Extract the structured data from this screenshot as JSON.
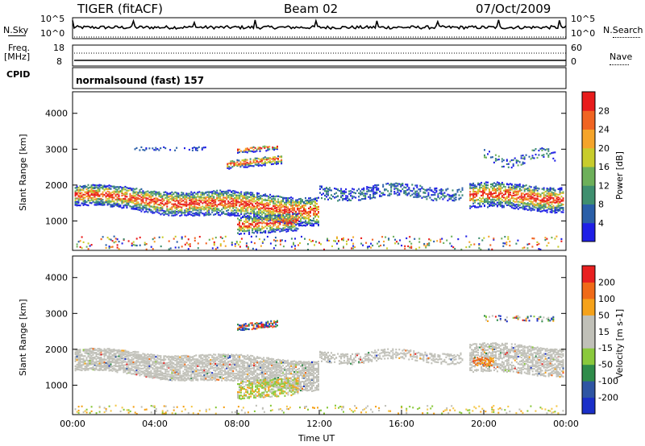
{
  "header": {
    "left_title": "TIGER (fitACF)",
    "center_title": "Beam 02",
    "right_title": "07/Oct/2009"
  },
  "labels": {
    "nsky": "N.Sky",
    "nsearch": "N.Search",
    "freq_line1": "Freq.",
    "freq_line2": "[MHz]",
    "nave": "Nave",
    "cpid": "CPID",
    "cpid_value": "normalsound (fast) 157"
  },
  "noise_axis": {
    "left_ticks": [
      "10^5",
      "10^0"
    ],
    "right_ticks": [
      "10^5",
      "10^0"
    ]
  },
  "freq_axis": {
    "left_ticks": [
      "18",
      "8"
    ],
    "right_ticks": [
      "60",
      "0"
    ]
  },
  "chart_data": [
    {
      "type": "heatmap",
      "name": "power",
      "ylabel": "Slant Range [km]",
      "xlabel": "",
      "ylim": [
        180,
        4600
      ],
      "xlim": [
        0,
        24
      ],
      "y_ticks": [
        1000,
        2000,
        3000,
        4000
      ],
      "colorbar": {
        "label": "Power [dB]",
        "ticks": [
          4,
          8,
          12,
          16,
          20,
          24,
          28
        ],
        "colors": [
          "#1f1fe6",
          "#2a5fa8",
          "#3f8f6f",
          "#6db05a",
          "#c8cc2c",
          "#f5a42a",
          "#f06422",
          "#e81c1c"
        ]
      }
    },
    {
      "type": "heatmap",
      "name": "velocity",
      "ylabel": "Slant Range [km]",
      "xlabel": "Time UT",
      "ylim": [
        180,
        4600
      ],
      "xlim": [
        0,
        24
      ],
      "y_ticks": [
        1000,
        2000,
        3000,
        4000
      ],
      "x_ticks": [
        "00:00",
        "04:00",
        "08:00",
        "12:00",
        "16:00",
        "20:00",
        "00:00"
      ],
      "colorbar": {
        "label": "Velocity [m s-1]",
        "ticks": [
          200,
          100,
          50,
          15,
          -15,
          -50,
          -100,
          -200
        ],
        "colors": [
          "#1a2fc8",
          "#2e55a3",
          "#2f8c4a",
          "#8ac93c",
          "#c0c0b8",
          "#c0c0b8",
          "#f5a21a",
          "#f06a18",
          "#e82020"
        ]
      }
    }
  ],
  "cpid_text": "normalsound (fast) 157"
}
